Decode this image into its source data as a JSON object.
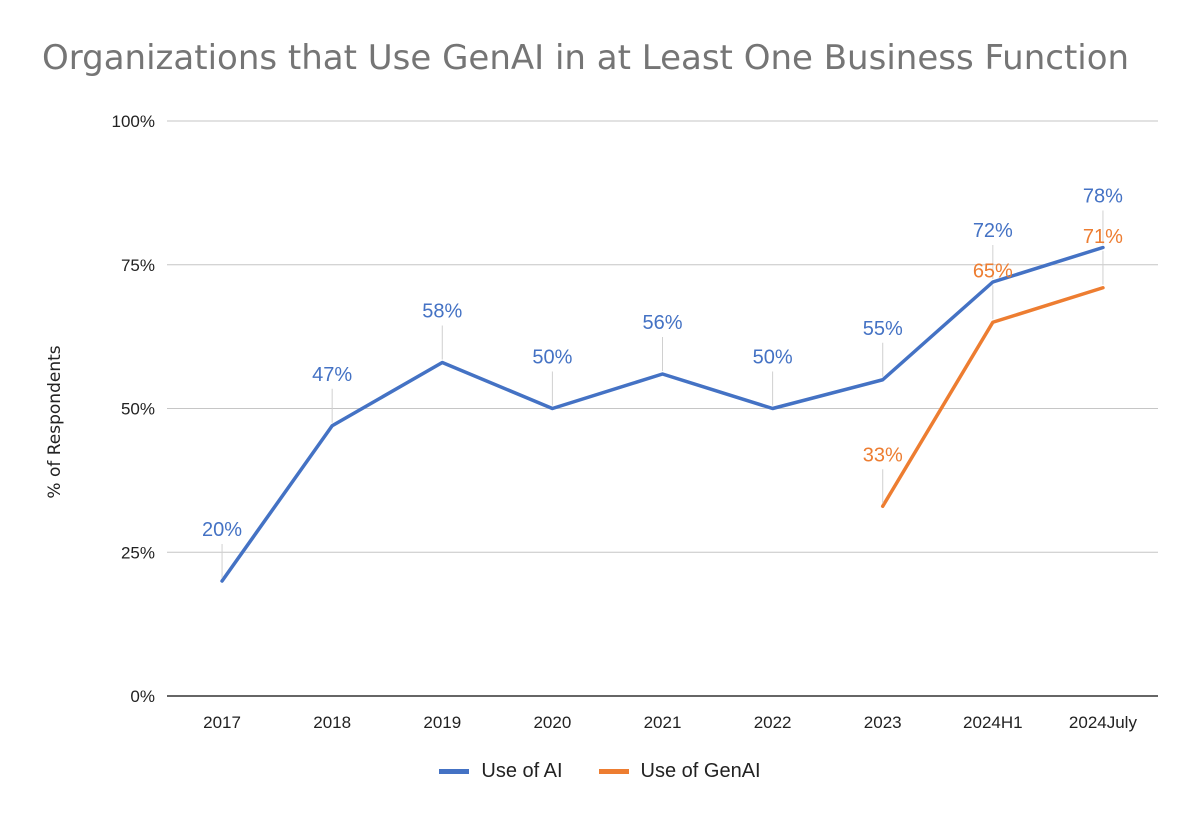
{
  "chart_data": {
    "type": "line",
    "title": "Organizations that Use GenAI in at Least One Business Function",
    "ylabel": "% of Respondents",
    "xlabel": "",
    "categories": [
      "2017",
      "2018",
      "2019",
      "2020",
      "2021",
      "2022",
      "2023",
      "2024H1",
      "2024July"
    ],
    "ylim": [
      0,
      100
    ],
    "y_ticks": [
      "0%",
      "25%",
      "50%",
      "75%",
      "100%"
    ],
    "grid": true,
    "legend_position": "bottom",
    "series": [
      {
        "name": "Use of AI",
        "color": "#4472C4",
        "values": [
          20,
          47,
          58,
          50,
          56,
          50,
          55,
          72,
          78
        ]
      },
      {
        "name": "Use of GenAI",
        "color": "#ED7D31",
        "values": [
          null,
          null,
          null,
          null,
          null,
          null,
          33,
          65,
          71
        ]
      }
    ]
  }
}
